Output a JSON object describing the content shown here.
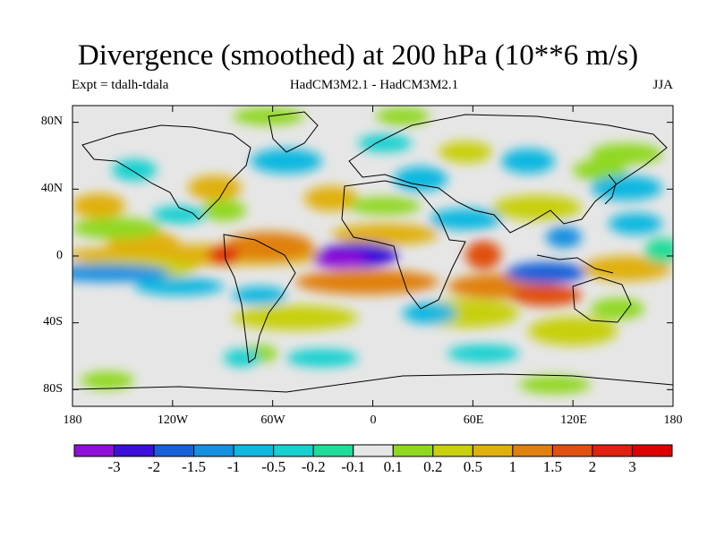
{
  "title": "Divergence (smoothed) at 200 hPa (10**6 m/s)",
  "experiment": "Expt = tdalh-tdala",
  "models": "HadCM3M2.1 - HadCM3M2.1",
  "season": "JJA",
  "lat_labels": [
    "80N",
    "40N",
    "0",
    "40S",
    "80S"
  ],
  "lat_values": [
    80,
    40,
    0,
    -40,
    -80
  ],
  "lon_labels": [
    "180",
    "120W",
    "60W",
    "0",
    "60E",
    "120E",
    "180"
  ],
  "lon_values": [
    -180,
    -120,
    -60,
    0,
    60,
    120,
    180
  ],
  "colorbar": {
    "labels": [
      "-3",
      "-2",
      "-1.5",
      "-1",
      "-0.5",
      "-0.2",
      "-0.1",
      "0.1",
      "0.2",
      "0.5",
      "1",
      "1.5",
      "2",
      "3"
    ],
    "colors": [
      "#8f10d8",
      "#3c10d8",
      "#1760d8",
      "#1590e0",
      "#10b8e0",
      "#18d0d0",
      "#20dc98",
      "#e6e6e6",
      "#90d820",
      "#c8d010",
      "#e0b010",
      "#e08010",
      "#e05010",
      "#e02010",
      "#dc0000"
    ]
  },
  "colors": {
    "land_outline": "#000000",
    "neutral": "#e6e6e6"
  }
}
